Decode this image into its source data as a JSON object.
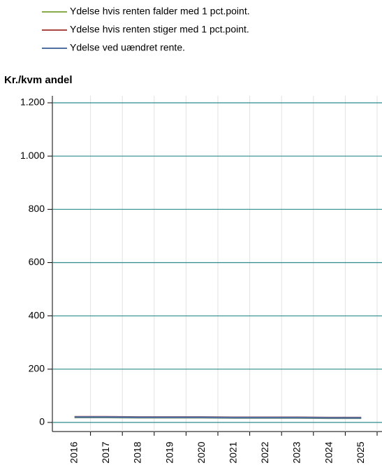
{
  "chart_data": {
    "type": "line",
    "y_axis_label": "Kr./kvm andel",
    "categories": [
      "2016",
      "2017",
      "2018",
      "2019",
      "2020",
      "2021",
      "2022",
      "2023",
      "2024",
      "2025"
    ],
    "series": [
      {
        "name": "Ydelse hvis renten falder med 1 pct.point.",
        "color": "#8aab4a",
        "values": [
          19,
          19,
          18,
          18,
          18,
          17,
          17,
          17,
          16,
          16
        ]
      },
      {
        "name": "Ydelse hvis renten stiger med 1 pct.point.",
        "color": "#a8463f",
        "values": [
          21,
          21,
          20,
          20,
          20,
          19,
          19,
          19,
          18,
          18
        ]
      },
      {
        "name": "Ydelse ved uændret rente.",
        "color": "#4f6f9f",
        "values": [
          20,
          20,
          19,
          19,
          19,
          18,
          18,
          18,
          17,
          17
        ]
      }
    ],
    "ylim": [
      0,
      1200
    ],
    "yticks": [
      0,
      200,
      400,
      600,
      800,
      {
        "value": 1000,
        "label": "1.000"
      },
      {
        "value": 1200,
        "label": "1.200"
      }
    ],
    "grid": true
  }
}
